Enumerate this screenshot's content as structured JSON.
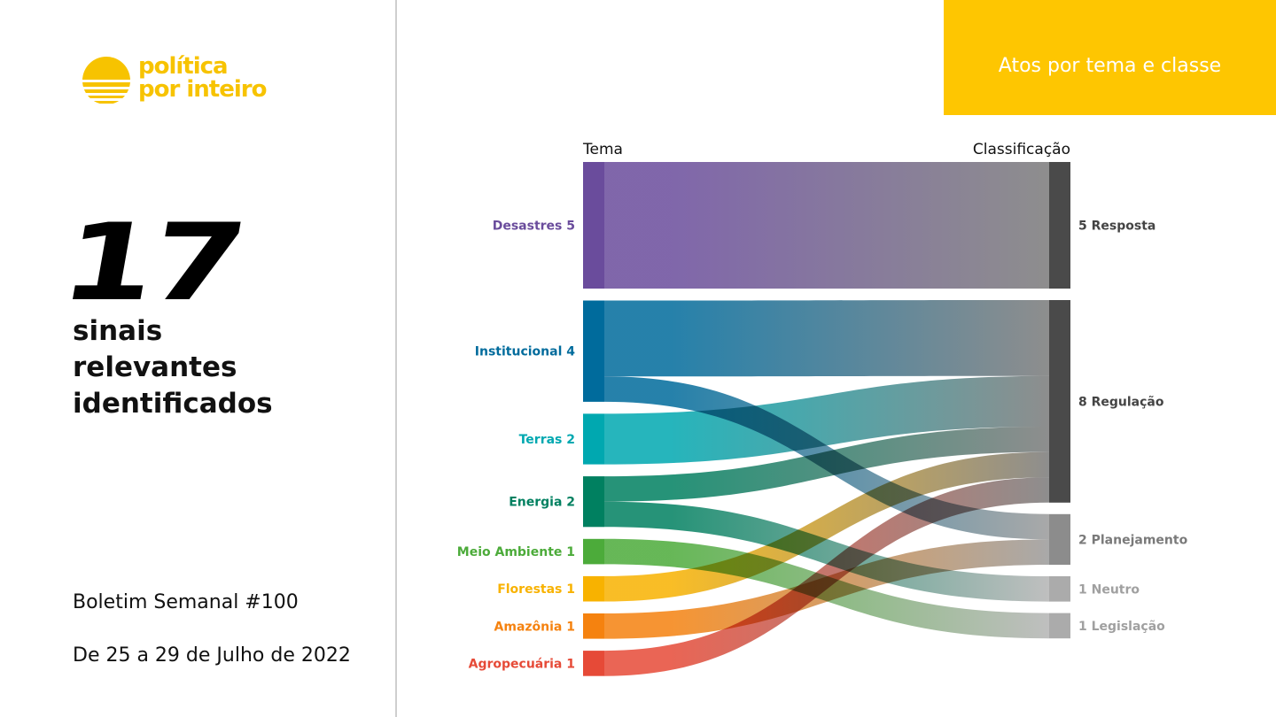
{
  "brand": {
    "name_line1": "política",
    "name_line2": "por inteiro",
    "color": "#f7c300"
  },
  "summary": {
    "count": "17",
    "label_line1": "sinais",
    "label_line2": "relevantes",
    "label_line3": "identificados"
  },
  "bulletin": {
    "title": "Boletim Semanal #100",
    "dates": "De 25 a 29 de Julho de 2022"
  },
  "header": {
    "title": "Atos por tema e classe",
    "color": "#fec601"
  },
  "chart_data": {
    "type": "sankey",
    "source_header": "Tema",
    "target_header": "Classificação",
    "sources": [
      {
        "name": "Desastres",
        "value": 5,
        "label": "Desastres 5",
        "color": "#6a4c9c"
      },
      {
        "name": "Institucional",
        "value": 4,
        "label": "Institucional 4",
        "color": "#006b9c"
      },
      {
        "name": "Terras",
        "value": 2,
        "label": "Terras 2",
        "color": "#00a8b0"
      },
      {
        "name": "Energia",
        "value": 2,
        "label": "Energia 2",
        "color": "#008060"
      },
      {
        "name": "Meio Ambiente",
        "value": 1,
        "label": "Meio Ambiente 1",
        "color": "#4cab3a"
      },
      {
        "name": "Florestas",
        "value": 1,
        "label": "Florestas 1",
        "color": "#f8b200"
      },
      {
        "name": "Amazônia",
        "value": 1,
        "label": "Amazônia 1",
        "color": "#f5820f"
      },
      {
        "name": "Agropecuária",
        "value": 1,
        "label": "Agropecuária 1",
        "color": "#e64a37"
      }
    ],
    "targets": [
      {
        "name": "Resposta",
        "value": 5,
        "label": "5 Resposta",
        "color": "#4a4a4a",
        "label_color": "#444444",
        "link_end": "#7a7a7a"
      },
      {
        "name": "Regulação",
        "value": 8,
        "label": "8 Regulação",
        "color": "#4a4a4a",
        "label_color": "#444444",
        "link_end": "#7a7a7a"
      },
      {
        "name": "Planejamento",
        "value": 2,
        "label": "2 Planejamento",
        "color": "#8c8c8c",
        "label_color": "#7a7a7a",
        "link_end": "#9a9a9a"
      },
      {
        "name": "Neutro",
        "value": 1,
        "label": "1 Neutro",
        "color": "#ababab",
        "label_color": "#a0a0a0",
        "link_end": "#b4b4b4"
      },
      {
        "name": "Legislação",
        "value": 1,
        "label": "1 Legislação",
        "color": "#ababab",
        "label_color": "#a0a0a0",
        "link_end": "#b4b4b4"
      }
    ],
    "links": [
      {
        "source": "Desastres",
        "target": "Resposta",
        "value": 5
      },
      {
        "source": "Institucional",
        "target": "Regulação",
        "value": 3
      },
      {
        "source": "Institucional",
        "target": "Planejamento",
        "value": 1
      },
      {
        "source": "Terras",
        "target": "Regulação",
        "value": 2
      },
      {
        "source": "Energia",
        "target": "Regulação",
        "value": 1
      },
      {
        "source": "Energia",
        "target": "Neutro",
        "value": 1
      },
      {
        "source": "Meio Ambiente",
        "target": "Legislação",
        "value": 1
      },
      {
        "source": "Florestas",
        "target": "Regulação",
        "value": 1
      },
      {
        "source": "Amazônia",
        "target": "Planejamento",
        "value": 1
      },
      {
        "source": "Agropecuária",
        "target": "Regulação",
        "value": 1
      }
    ]
  }
}
